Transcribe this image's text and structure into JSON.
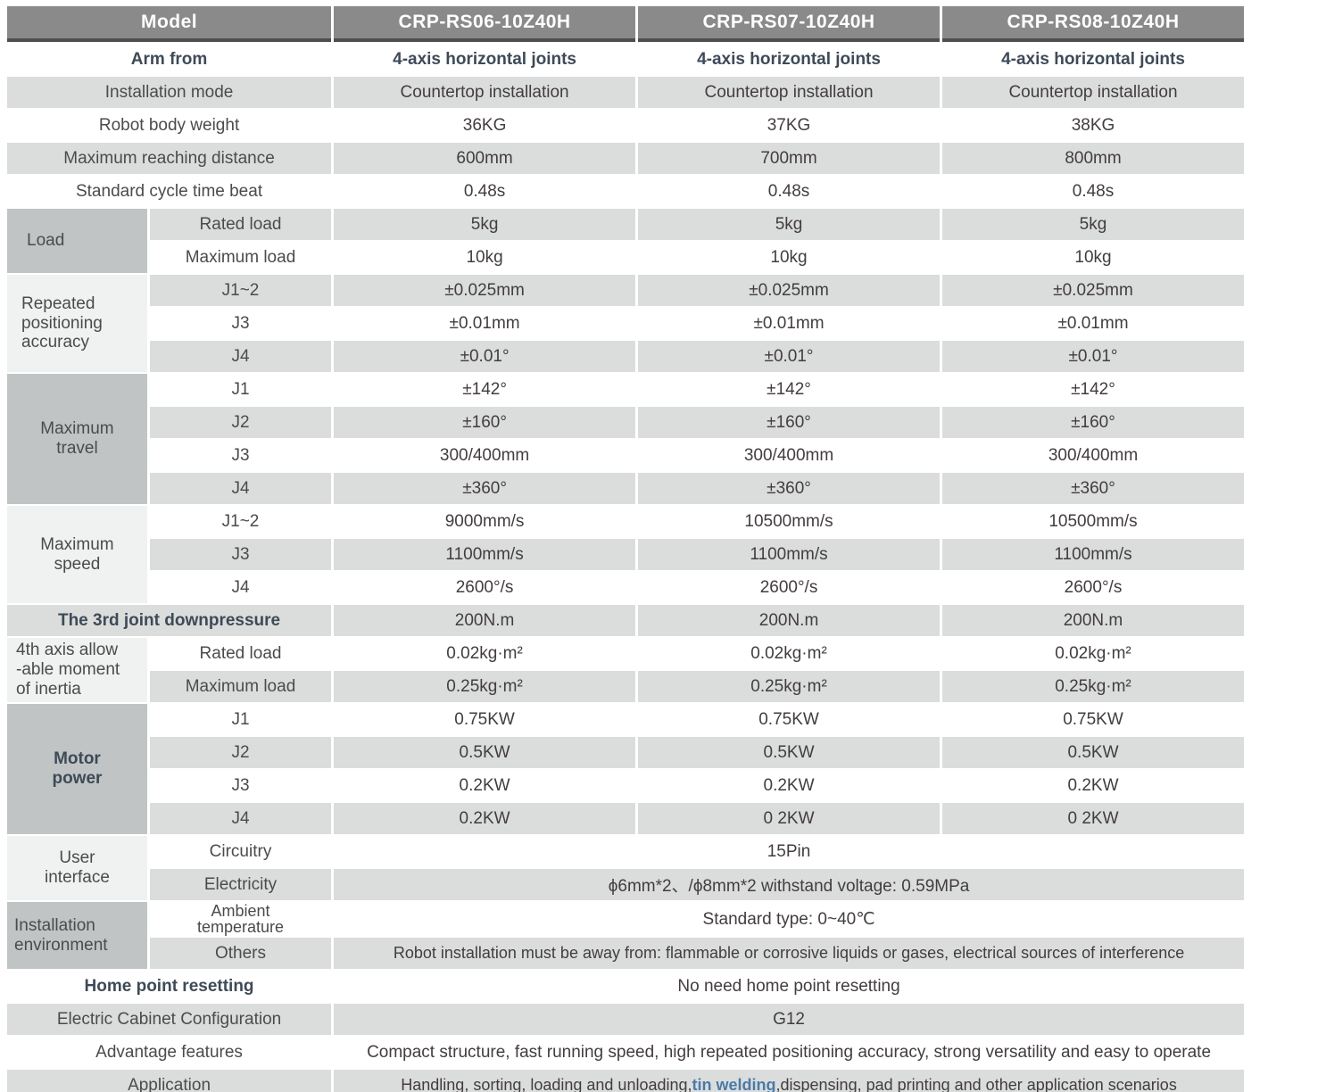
{
  "colors": {
    "header_bg": "#8a8a8a",
    "header_text": "#ffffff",
    "stripe_gray": "#dbdddd",
    "group_dark": "#c0c4c4",
    "group_light": "#f0f1f1",
    "label_text": "#4b4b4b",
    "value_text": "#433d3d",
    "accent_slate": "#3e4a57",
    "highlight_blue": "#4a7ba6"
  },
  "header": {
    "label": "Model",
    "models": [
      "CRP-RS06-10Z40H",
      "CRP-RS07-10Z40H",
      "CRP-RS08-10Z40H"
    ]
  },
  "groups": {
    "load": "Load",
    "rpa": "Repeated\npositioning\naccuracy",
    "mt": "Maximum\ntravel",
    "ms": "Maximum\nspeed",
    "axis4": "4th axis allow\n-able moment\nof inertia",
    "mp": "Motor\npower",
    "ui": "User\ninterface",
    "ie": "Installation\nenvironment"
  },
  "rows": [
    {
      "label": "Arm from",
      "values": [
        "4-axis horizontal joints",
        "4-axis horizontal joints",
        "4-axis horizontal joints"
      ]
    },
    {
      "label": "Installation mode",
      "values": [
        "Countertop installation",
        "Countertop installation",
        "Countertop installation"
      ]
    },
    {
      "label": "Robot body weight",
      "values": [
        "36KG",
        "37KG",
        "38KG"
      ]
    },
    {
      "label": "Maximum reaching distance",
      "values": [
        "600mm",
        "700mm",
        "800mm"
      ]
    },
    {
      "label": "Standard cycle time beat",
      "values": [
        "0.48s",
        "0.48s",
        "0.48s"
      ]
    },
    {
      "label": "Rated load",
      "values": [
        "5kg",
        "5kg",
        "5kg"
      ]
    },
    {
      "label": "Maximum load",
      "values": [
        "10kg",
        "10kg",
        "10kg"
      ]
    },
    {
      "label": "J1~2",
      "values": [
        "±0.025mm",
        "±0.025mm",
        "±0.025mm"
      ]
    },
    {
      "label": "J3",
      "values": [
        "±0.01mm",
        "±0.01mm",
        "±0.01mm"
      ]
    },
    {
      "label": "J4",
      "values": [
        "±0.01°",
        "±0.01°",
        "±0.01°"
      ]
    },
    {
      "label": "J1",
      "values": [
        "±142°",
        "±142°",
        "±142°"
      ]
    },
    {
      "label": "J2",
      "values": [
        "±160°",
        "±160°",
        "±160°"
      ]
    },
    {
      "label": "J3",
      "values": [
        "300/400mm",
        "300/400mm",
        "300/400mm"
      ]
    },
    {
      "label": "J4",
      "values": [
        "±360°",
        "±360°",
        "±360°"
      ]
    },
    {
      "label": "J1~2",
      "values": [
        "9000mm/s",
        "10500mm/s",
        "10500mm/s"
      ]
    },
    {
      "label": "J3",
      "values": [
        "1100mm/s",
        "1100mm/s",
        "1100mm/s"
      ]
    },
    {
      "label": "J4",
      "values": [
        "2600°/s",
        "2600°/s",
        "2600°/s"
      ]
    },
    {
      "label": "The 3rd joint downpressure",
      "values": [
        "200N.m",
        "200N.m",
        "200N.m"
      ]
    },
    {
      "label": "Rated load",
      "values": [
        "0.02kg·m²",
        "0.02kg·m²",
        "0.02kg·m²"
      ]
    },
    {
      "label": "Maximum load",
      "values": [
        "0.25kg·m²",
        "0.25kg·m²",
        "0.25kg·m²"
      ]
    },
    {
      "label": "J1",
      "values": [
        "0.75KW",
        "0.75KW",
        "0.75KW"
      ]
    },
    {
      "label": "J2",
      "values": [
        "0.5KW",
        "0.5KW",
        "0.5KW"
      ]
    },
    {
      "label": "J3",
      "values": [
        "0.2KW",
        "0.2KW",
        "0.2KW"
      ]
    },
    {
      "label": "J4",
      "values": [
        "0.2KW",
        "0 2KW",
        "0 2KW"
      ]
    },
    {
      "label": "Circuitry",
      "value": "15Pin"
    },
    {
      "label": "Electricity",
      "value": "ϕ6mm*2、/ϕ8mm*2  withstand voltage: 0.59MPa"
    },
    {
      "label": "Ambient\ntemperature",
      "value": "Standard type:   0~40℃"
    },
    {
      "label": "Others",
      "value": "Robot installation must be away from: flammable or corrosive liquids or gases, electrical sources of interference"
    },
    {
      "label": "Home point resetting",
      "value": "No need home point resetting"
    },
    {
      "label": "Electric Cabinet Configuration",
      "value": "G12"
    },
    {
      "label": "Advantage features",
      "value": "Compact structure, fast running speed, high repeated positioning accuracy, strong versatility and easy to operate"
    },
    {
      "label": "Application",
      "value_pre": "Handling, sorting, loading and unloading,",
      "value_highlight": "tin welding",
      "value_post": ",dispensing, pad printing and other application scenarios"
    }
  ]
}
